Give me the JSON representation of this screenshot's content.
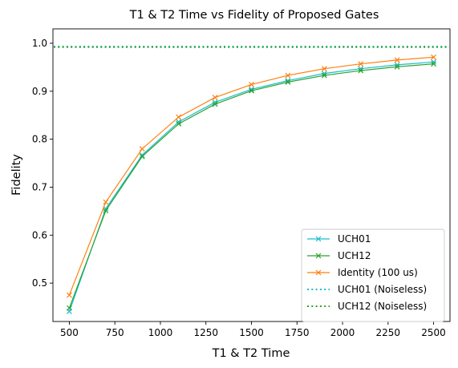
{
  "chart_data": {
    "type": "line",
    "title": "T1 & T2 Time vs Fidelity of Proposed Gates",
    "xlabel": "T1 & T2 Time",
    "ylabel": "Fidelity",
    "xlim": [
      410,
      2590
    ],
    "ylim": [
      0.42,
      1.03
    ],
    "xticks": [
      500,
      750,
      1000,
      1250,
      1500,
      1750,
      2000,
      2250,
      2500
    ],
    "yticks": [
      0.5,
      0.6,
      0.7,
      0.8,
      0.9,
      1.0
    ],
    "x": [
      500,
      700,
      900,
      1100,
      1300,
      1500,
      1700,
      1900,
      2100,
      2300,
      2500
    ],
    "series": [
      {
        "name": "UCH01",
        "color": "#17becf",
        "marker": "x",
        "values": [
          0.441,
          0.655,
          0.767,
          0.836,
          0.877,
          0.904,
          0.922,
          0.937,
          0.947,
          0.955,
          0.961
        ]
      },
      {
        "name": "UCH12",
        "color": "#2ca02c",
        "marker": "x",
        "values": [
          0.448,
          0.651,
          0.764,
          0.832,
          0.873,
          0.901,
          0.919,
          0.933,
          0.943,
          0.951,
          0.957
        ]
      },
      {
        "name": "Identity (100 us)",
        "color": "#ff7f0e",
        "marker": "x",
        "values": [
          0.475,
          0.669,
          0.78,
          0.846,
          0.887,
          0.914,
          0.933,
          0.947,
          0.957,
          0.965,
          0.971
        ]
      }
    ],
    "hlines": [
      {
        "name": "UCH01 (Noiseless)",
        "color": "#17becf",
        "style": "dotted",
        "value": 0.993
      },
      {
        "name": "UCH12 (Noiseless)",
        "color": "#2ca02c",
        "style": "dotted",
        "value": 0.992
      }
    ],
    "grid": false,
    "legend_position": "lower right"
  }
}
